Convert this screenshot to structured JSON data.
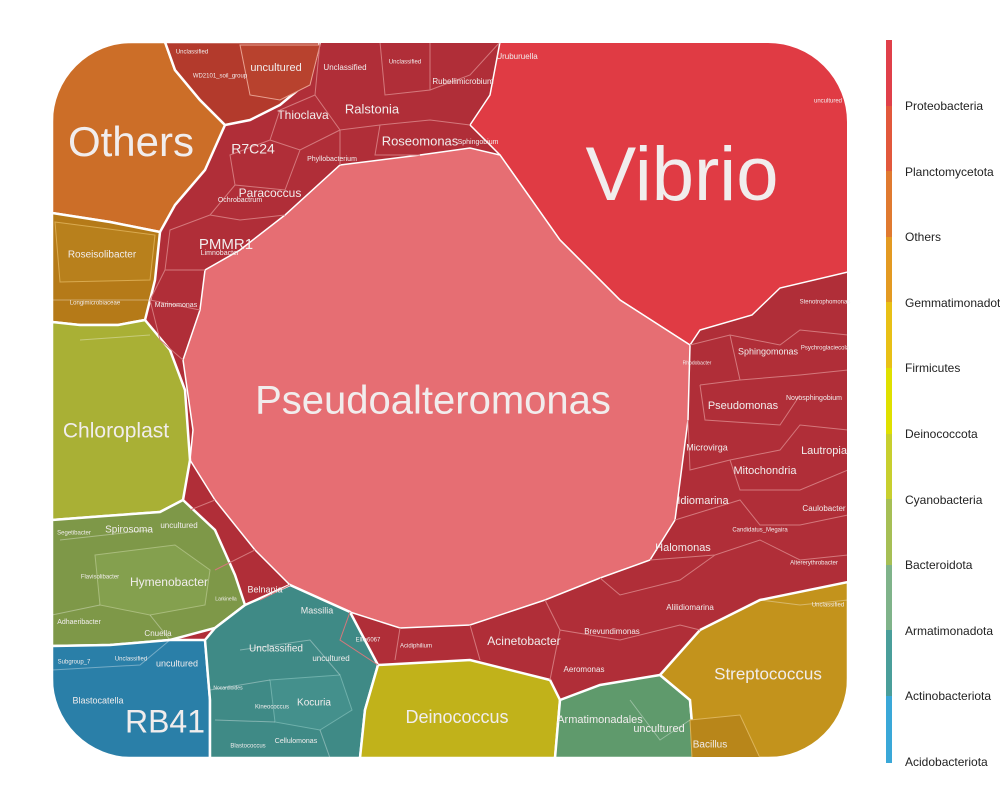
{
  "chart_data": {
    "type": "voronoi-treemap",
    "title": "",
    "legend": {
      "position": "right",
      "entries": [
        {
          "name": "Proteobacteria",
          "color": "#e0404a"
        },
        {
          "name": "Planctomycetota",
          "color": "#e2583c"
        },
        {
          "name": "Others",
          "color": "#e07a30"
        },
        {
          "name": "Gemmatimonadota",
          "color": "#e39a22"
        },
        {
          "name": "Firmicutes",
          "color": "#e8c016"
        },
        {
          "name": "Deinococcota",
          "color": "#dfe000"
        },
        {
          "name": "Cyanobacteria",
          "color": "#c8cf2e"
        },
        {
          "name": "Bacteroidota",
          "color": "#a6bf55"
        },
        {
          "name": "Armatimonadota",
          "color": "#7fb38a"
        },
        {
          "name": "Actinobacteriota",
          "color": "#4a9e9a"
        },
        {
          "name": "Acidobacteriota",
          "color": "#3aa8d8"
        }
      ]
    },
    "phyla": [
      {
        "name": "Proteobacteria",
        "genera": [
          "Pseudoalteromonas",
          "Vibrio",
          "Ralstonia",
          "Thioclava",
          "Roseomonas",
          "R7C24",
          "Paracoccus",
          "PMMR1",
          "Phyllobacterium",
          "Rubellimicrobium",
          "Unclassified",
          "Unclassified",
          "Uruburuella",
          "Sphingobium",
          "Ochrobactrum",
          "Limnobacter",
          "Marinomonas",
          "Stenotrophomonas",
          "Sphingomonas",
          "Psychroglaciecola",
          "Pseudomonas",
          "Novosphingobium",
          "Microvirga",
          "Mitochondria",
          "Lautropia",
          "Idiomarina",
          "Caulobacter",
          "Candidatus_Megaira",
          "Halomonas",
          "Altererythrobacter",
          "Alilidiomarina",
          "Brevundimonas",
          "Acinetobacter",
          "Aeromonas",
          "Massilia",
          "Belnapia",
          "Ellin6067",
          "Acidiphilium",
          "Rhodobacter",
          "uncultured"
        ]
      },
      {
        "name": "Others",
        "genera": [
          "Others"
        ]
      },
      {
        "name": "Planctomycetota",
        "genera": [
          "uncultured",
          "Unclassified",
          "WD2101_soil_group"
        ]
      },
      {
        "name": "Gemmatimonadota",
        "genera": [
          "Roseisolibacter",
          "Longimicrobiaceae"
        ]
      },
      {
        "name": "Cyanobacteria",
        "genera": [
          "Chloroplast"
        ]
      },
      {
        "name": "Bacteroidota",
        "genera": [
          "Spirosoma",
          "uncultured",
          "Hymenobacter",
          "Segetibacter",
          "Flavisolibacter",
          "Adhaeribacter",
          "Cnuella",
          "Larkinella"
        ]
      },
      {
        "name": "Acidobacteriota",
        "genera": [
          "RB41",
          "Blastocatella",
          "Subgroup_7",
          "Unclassified",
          "uncultured"
        ]
      },
      {
        "name": "Actinobacteriota",
        "genera": [
          "Unclassified",
          "Kocuria",
          "uncultured",
          "Cellulomonas",
          "Blastococcus",
          "Kineococcus",
          "Nocardioides"
        ]
      },
      {
        "name": "Deinococcota",
        "genera": [
          "Deinococcus"
        ]
      },
      {
        "name": "Armatimonadota",
        "genera": [
          "Armatimonadales",
          "uncultured"
        ]
      },
      {
        "name": "Firmicutes",
        "genera": [
          "Streptococcus",
          "Bacillus",
          "Unclassified"
        ]
      }
    ]
  }
}
